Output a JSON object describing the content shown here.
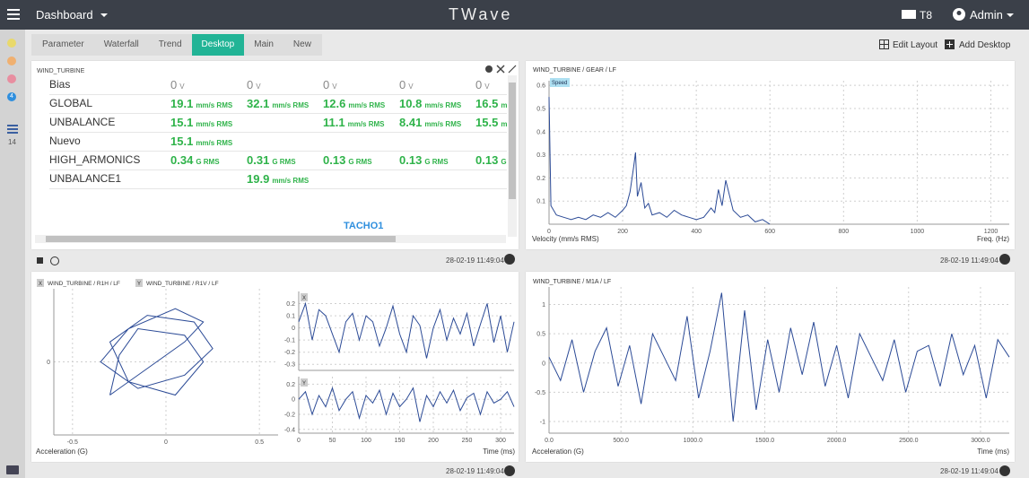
{
  "navbar": {
    "title": "Dashboard",
    "brand": "TWave",
    "device": "T8",
    "user": "Admin"
  },
  "sidebar": {
    "badge": "4",
    "count": "14"
  },
  "tabs": {
    "items": [
      "Parameter",
      "Waterfall",
      "Trend",
      "Desktop",
      "Main",
      "New"
    ],
    "active": 3
  },
  "toolbar": [
    "Edit Layout",
    "Add Desktop"
  ],
  "table": {
    "title": "WIND_TURBINE",
    "footer": "TACHO1",
    "rows": [
      {
        "name": "Bias",
        "cells": [
          {
            "value": "0",
            "unit": "V"
          },
          {
            "value": "0",
            "unit": "V"
          },
          {
            "value": "0",
            "unit": "V"
          },
          {
            "value": "0",
            "unit": "V"
          },
          {
            "value": "0",
            "unit": "V"
          }
        ]
      },
      {
        "name": "GLOBAL",
        "cells": [
          {
            "value": "19.1",
            "unit": "mm/s RMS"
          },
          {
            "value": "32.1",
            "unit": "mm/s RMS"
          },
          {
            "value": "12.6",
            "unit": "mm/s RMS"
          },
          {
            "value": "10.8",
            "unit": "mm/s RMS"
          },
          {
            "value": "16.5",
            "unit": "mm/s"
          }
        ]
      },
      {
        "name": "UNBALANCE",
        "cells": [
          {
            "value": "15.1",
            "unit": "mm/s RMS"
          },
          null,
          {
            "value": "11.1",
            "unit": "mm/s RMS"
          },
          {
            "value": "8.41",
            "unit": "mm/s RMS"
          },
          {
            "value": "15.5",
            "unit": "mm/s"
          }
        ]
      },
      {
        "name": "Nuevo",
        "cells": [
          {
            "value": "15.1",
            "unit": "mm/s RMS"
          },
          null,
          null,
          null,
          null
        ]
      },
      {
        "name": "HIGH_ARMONICS",
        "cells": [
          {
            "value": "0.34",
            "unit": "G RMS"
          },
          {
            "value": "0.31",
            "unit": "G RMS"
          },
          {
            "value": "0.13",
            "unit": "G RMS"
          },
          {
            "value": "0.13",
            "unit": "G RMS"
          },
          {
            "value": "0.13",
            "unit": "G RMS"
          }
        ]
      },
      {
        "name": "UNBALANCE1",
        "cells": [
          null,
          {
            "value": "19.9",
            "unit": "mm/s RMS"
          },
          null,
          null,
          null
        ]
      }
    ]
  },
  "timestamps": [
    "28-02-19 11:49:04",
    "28-02-19 11:49:04",
    "28-02-19 11:49:04",
    "28-02-19 11:49:04"
  ],
  "chart_data": [
    {
      "type": "line",
      "title": "WIND_TURBINE / GEAR / LF",
      "legend": "Speed",
      "xlabel": "Freq. (Hz)",
      "ylabel": "Velocity (mm/s RMS)",
      "color": "#2b4a96",
      "grid": true,
      "x": [
        0,
        5,
        20,
        40,
        60,
        80,
        100,
        120,
        140,
        160,
        180,
        200,
        210,
        220,
        230,
        235,
        240,
        250,
        260,
        270,
        280,
        300,
        320,
        340,
        360,
        380,
        400,
        420,
        440,
        450,
        460,
        470,
        480,
        500,
        520,
        540,
        560,
        580,
        600
      ],
      "values": [
        0.55,
        0.08,
        0.04,
        0.03,
        0.02,
        0.03,
        0.02,
        0.04,
        0.03,
        0.05,
        0.03,
        0.06,
        0.08,
        0.14,
        0.25,
        0.31,
        0.12,
        0.18,
        0.07,
        0.09,
        0.04,
        0.05,
        0.03,
        0.06,
        0.04,
        0.03,
        0.02,
        0.03,
        0.07,
        0.05,
        0.15,
        0.08,
        0.19,
        0.06,
        0.03,
        0.04,
        0.01,
        0.02,
        0.0
      ],
      "xlim": [
        0,
        1250
      ],
      "ylim": [
        0,
        0.62
      ],
      "xticks": [
        0,
        200,
        400,
        600,
        800,
        1000,
        1200
      ],
      "yticks": [
        0.1,
        0.2,
        0.3,
        0.4,
        0.5,
        0.6
      ]
    },
    {
      "type": "line",
      "sources": [
        {
          "axis": "X",
          "label": "WIND_TURBINE / R1H / LF"
        },
        {
          "axis": "Y",
          "label": "WIND_TURBINE / R1V / LF"
        }
      ],
      "ylabel": "Acceleration (G)",
      "color": "#2b4a96",
      "grid": true,
      "x": [
        -0.3,
        -0.1,
        0.1,
        0.2,
        0.05,
        -0.2,
        -0.35,
        -0.15,
        0.1,
        0.25,
        0.15,
        -0.1,
        -0.3,
        -0.2,
        0.05,
        0.2,
        0.1,
        -0.15,
        -0.25,
        -0.3
      ],
      "values": [
        -0.5,
        -0.1,
        0.3,
        0.6,
        0.8,
        0.5,
        0.0,
        -0.4,
        -0.2,
        0.2,
        0.6,
        0.7,
        0.3,
        -0.3,
        -0.5,
        0.0,
        0.4,
        0.5,
        0.1,
        -0.5
      ],
      "xlim": [
        -0.6,
        0.6
      ],
      "ylim": [
        -1.1,
        1.1
      ],
      "xticks": [
        -0.5,
        0,
        0.5
      ],
      "yticks": [
        0
      ]
    },
    {
      "type": "line",
      "name": "X",
      "color": "#2b4a96",
      "grid": true,
      "x": [
        0,
        10,
        20,
        30,
        40,
        50,
        60,
        70,
        80,
        90,
        100,
        110,
        120,
        130,
        140,
        150,
        160,
        170,
        180,
        190,
        200,
        210,
        220,
        230,
        240,
        250,
        260,
        270,
        280,
        290,
        300,
        310,
        320
      ],
      "values": [
        0.05,
        0.2,
        -0.1,
        0.15,
        0.1,
        -0.05,
        -0.2,
        0.05,
        0.12,
        -0.1,
        0.1,
        0.05,
        -0.15,
        0.0,
        0.18,
        -0.05,
        -0.2,
        0.1,
        0.02,
        -0.25,
        0.0,
        0.15,
        -0.1,
        0.08,
        -0.05,
        0.12,
        -0.15,
        0.03,
        0.2,
        -0.12,
        0.1,
        -0.2,
        0.05
      ],
      "xlim": [
        0,
        320
      ],
      "ylim": [
        -0.35,
        0.3
      ],
      "yticks": [
        -0.3,
        -0.2,
        -0.1,
        0,
        0.1,
        0.2
      ]
    },
    {
      "type": "line",
      "name": "Y",
      "xlabel": "Time (ms)",
      "color": "#2b4a96",
      "grid": true,
      "x": [
        0,
        10,
        20,
        30,
        40,
        50,
        60,
        70,
        80,
        90,
        100,
        110,
        120,
        130,
        140,
        150,
        160,
        170,
        180,
        190,
        200,
        210,
        220,
        230,
        240,
        250,
        260,
        270,
        280,
        290,
        300,
        310,
        320
      ],
      "values": [
        0.0,
        0.1,
        -0.2,
        0.05,
        -0.1,
        0.15,
        -0.15,
        0.0,
        0.1,
        -0.25,
        0.05,
        -0.05,
        0.12,
        -0.2,
        0.08,
        -0.1,
        0.0,
        0.15,
        -0.3,
        0.05,
        -0.1,
        0.1,
        -0.05,
        0.12,
        -0.15,
        0.02,
        0.08,
        -0.2,
        0.1,
        -0.05,
        0.0,
        0.1,
        -0.1
      ],
      "xlim": [
        0,
        320
      ],
      "ylim": [
        -0.45,
        0.3
      ],
      "xticks": [
        0,
        50,
        100,
        150,
        200,
        250,
        300
      ],
      "yticks": [
        -0.4,
        -0.2,
        0,
        0.2
      ]
    },
    {
      "type": "line",
      "title": "WIND_TURBINE / M1A / LF",
      "xlabel": "Time (ms)",
      "ylabel": "Acceleration (G)",
      "color": "#2b4a96",
      "grid": true,
      "x": [
        0,
        80,
        160,
        240,
        320,
        400,
        480,
        560,
        640,
        720,
        800,
        880,
        960,
        1040,
        1120,
        1200,
        1280,
        1360,
        1440,
        1520,
        1600,
        1680,
        1760,
        1840,
        1920,
        2000,
        2080,
        2160,
        2240,
        2320,
        2400,
        2480,
        2560,
        2640,
        2720,
        2800,
        2880,
        2960,
        3040,
        3120,
        3200
      ],
      "values": [
        0.1,
        -0.3,
        0.4,
        -0.5,
        0.2,
        0.6,
        -0.4,
        0.3,
        -0.7,
        0.5,
        0.1,
        -0.3,
        0.8,
        -0.6,
        0.2,
        1.2,
        -1.0,
        0.9,
        -0.8,
        0.4,
        -0.5,
        0.6,
        -0.2,
        0.7,
        -0.4,
        0.3,
        -0.6,
        0.5,
        0.1,
        -0.3,
        0.4,
        -0.5,
        0.2,
        0.3,
        -0.4,
        0.5,
        -0.2,
        0.3,
        -0.6,
        0.4,
        0.1
      ],
      "xlim": [
        0,
        3200
      ],
      "ylim": [
        -1.2,
        1.3
      ],
      "xticks": [
        {
          "value": 0,
          "label": "0.0"
        },
        {
          "value": 500,
          "label": "500.0"
        },
        {
          "value": 1000,
          "label": "1000.0"
        },
        {
          "value": 1500,
          "label": "1500.0"
        },
        {
          "value": 2000,
          "label": "2000.0"
        },
        {
          "value": 2500,
          "label": "2500.0"
        },
        {
          "value": 3000,
          "label": "3000.0"
        }
      ],
      "yticks": [
        -1,
        -0.5,
        0,
        0.5,
        1
      ]
    }
  ]
}
